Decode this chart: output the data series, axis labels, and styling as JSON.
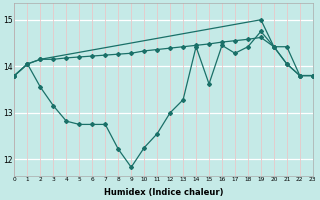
{
  "xlabel": "Humidex (Indice chaleur)",
  "bg_color": "#c5eae7",
  "line_color": "#1a7068",
  "xlim": [
    0,
    23
  ],
  "ylim": [
    11.65,
    15.35
  ],
  "yticks": [
    12,
    13,
    14,
    15
  ],
  "xticks": [
    0,
    1,
    2,
    3,
    4,
    5,
    6,
    7,
    8,
    9,
    10,
    11,
    12,
    13,
    14,
    15,
    16,
    17,
    18,
    19,
    20,
    21,
    22,
    23
  ],
  "line_upper_x": [
    0,
    1,
    2,
    19,
    20,
    21,
    22,
    23
  ],
  "line_upper_y": [
    13.8,
    14.05,
    14.15,
    15.0,
    14.42,
    14.05,
    13.8,
    13.8
  ],
  "line_mid_x": [
    0,
    1,
    2,
    3,
    4,
    5,
    6,
    7,
    8,
    9,
    10,
    11,
    12,
    13,
    14,
    15,
    16,
    17,
    18,
    19,
    20,
    21,
    22,
    23
  ],
  "line_mid_y": [
    13.8,
    14.05,
    14.15,
    14.15,
    14.18,
    14.2,
    14.22,
    14.24,
    14.26,
    14.28,
    14.33,
    14.36,
    14.39,
    14.42,
    14.45,
    14.48,
    14.52,
    14.55,
    14.58,
    14.62,
    14.42,
    14.42,
    13.8,
    13.8
  ],
  "line_low_x": [
    0,
    1,
    2,
    3,
    4,
    5,
    6,
    7,
    8,
    9,
    10,
    11,
    12,
    13,
    14,
    15,
    16,
    17,
    18,
    19,
    20,
    21,
    22,
    23
  ],
  "line_low_y": [
    13.8,
    14.05,
    13.55,
    13.15,
    12.82,
    12.75,
    12.75,
    12.75,
    12.22,
    11.83,
    12.25,
    12.55,
    13.0,
    13.28,
    14.42,
    13.62,
    14.45,
    14.28,
    14.42,
    14.75,
    14.42,
    14.05,
    13.8,
    13.8
  ]
}
